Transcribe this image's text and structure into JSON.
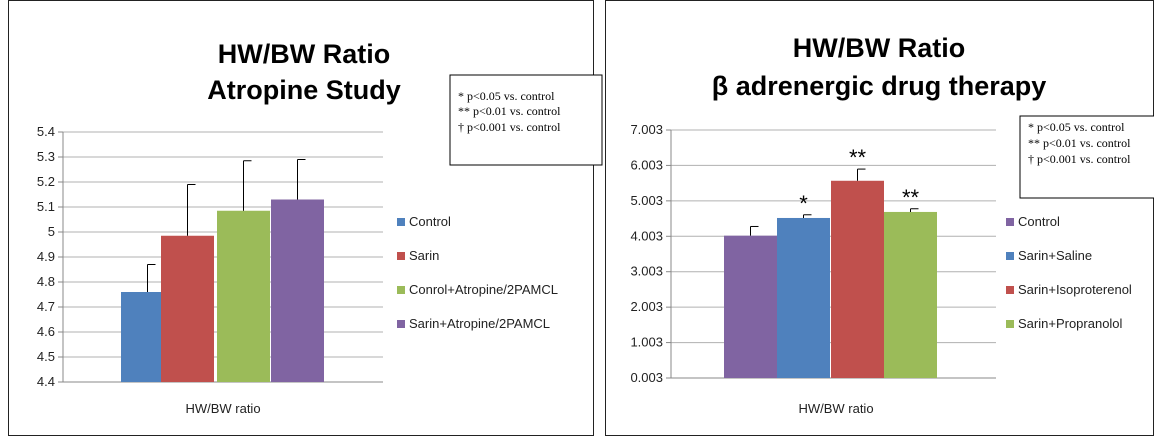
{
  "chart_data": [
    {
      "type": "bar",
      "title_lines": [
        "HW/BW Ratio",
        "Atropine Study"
      ],
      "xlabel": "HW/BW ratio",
      "ylabel": "",
      "ylim": [
        4.4,
        5.4
      ],
      "yticks": [
        "4.4",
        "4.5",
        "4.6",
        "4.7",
        "4.8",
        "4.9",
        "5",
        "5.1",
        "5.2",
        "5.3",
        "5.4"
      ],
      "grid": true,
      "legend_position": "right",
      "series": [
        {
          "name": "Control",
          "value": 4.76,
          "error": 0.11,
          "color": "#4f81bd",
          "mark": ""
        },
        {
          "name": "Sarin",
          "value": 4.985,
          "error": 0.205,
          "color": "#c0504d",
          "mark": ""
        },
        {
          "name": "Conrol+Atropine/2PAMCL",
          "value": 5.085,
          "error": 0.2,
          "color": "#9bbb59",
          "mark": ""
        },
        {
          "name": "Sarin+Atropine/2PAMCL",
          "value": 5.13,
          "error": 0.16,
          "color": "#8064a2",
          "mark": ""
        }
      ],
      "annotation": [
        "*  p<0.05  vs. control",
        "** p<0.01   vs. control",
        "†  p<0.001 vs. control"
      ]
    },
    {
      "type": "bar",
      "title_lines": [
        "HW/BW Ratio",
        "β adrenergic drug therapy"
      ],
      "xlabel": "HW/BW ratio",
      "ylabel": "",
      "ylim": [
        0.003,
        7.003
      ],
      "yticks": [
        "0.003",
        "1.003",
        "2.003",
        "3.003",
        "4.003",
        "5.003",
        "6.003",
        "7.003"
      ],
      "grid": true,
      "legend_position": "right",
      "series": [
        {
          "name": "Control",
          "value": 4.02,
          "error": 0.26,
          "color": "#8064a2",
          "mark": ""
        },
        {
          "name": "Sarin+Saline",
          "value": 4.52,
          "error": 0.09,
          "color": "#4f81bd",
          "mark": "*"
        },
        {
          "name": "Sarin+Isoproterenol",
          "value": 5.57,
          "error": 0.33,
          "color": "#c0504d",
          "mark": "**"
        },
        {
          "name": "Sarin+Propranolol",
          "value": 4.69,
          "error": 0.09,
          "color": "#9bbb59",
          "mark": "**"
        }
      ],
      "annotation": [
        "*  p<0.05  vs. control",
        "** p<0.01   vs. control",
        "†  p<0.001 vs. control"
      ]
    }
  ]
}
